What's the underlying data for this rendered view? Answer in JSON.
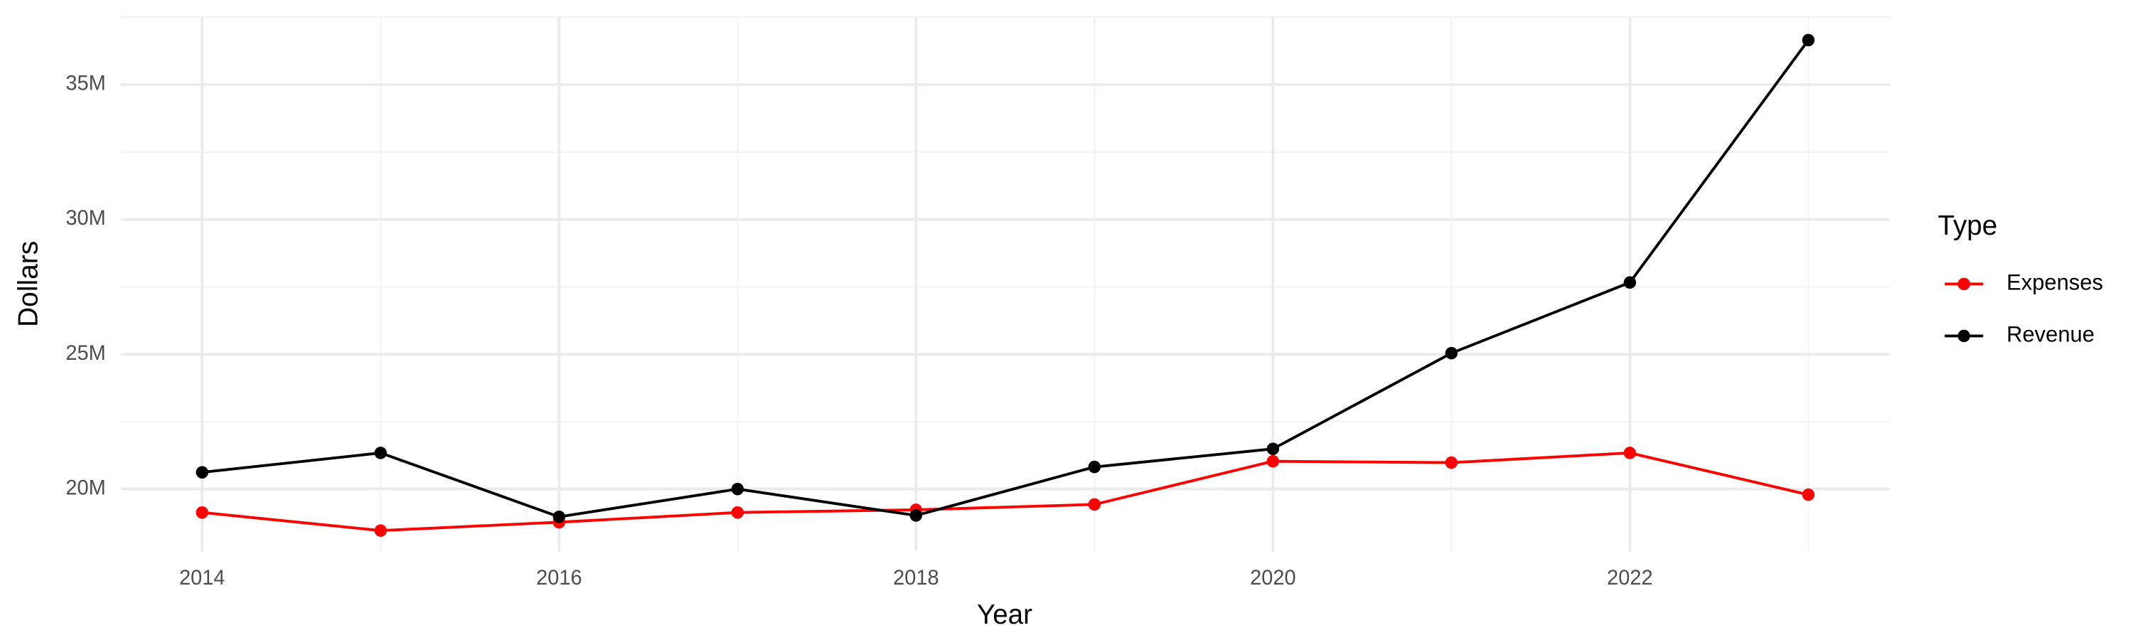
{
  "chart_data": {
    "type": "line",
    "x_label": "Year",
    "y_label": "Dollars",
    "legend_title": "Type",
    "x": [
      2014,
      2015,
      2016,
      2017,
      2018,
      2019,
      2020,
      2021,
      2022,
      2023
    ],
    "series": [
      {
        "name": "Expenses",
        "color": "#ff0000",
        "values": [
          19130000,
          18460000,
          18770000,
          19130000,
          19230000,
          19430000,
          21030000,
          20980000,
          21340000,
          19790000
        ]
      },
      {
        "name": "Revenue",
        "color": "#000000",
        "values": [
          20620000,
          21340000,
          18970000,
          20000000,
          19020000,
          20820000,
          21490000,
          25040000,
          27660000,
          36650000
        ]
      }
    ],
    "xlim": [
      2013.545,
      2023.456
    ],
    "ylim": [
      17690000,
      37520000
    ],
    "xticks": [
      2014,
      2016,
      2018,
      2020,
      2022
    ],
    "yticks": [
      {
        "value": 20000000,
        "label": "20M"
      },
      {
        "value": 25000000,
        "label": "25M"
      },
      {
        "value": 30000000,
        "label": "30M"
      },
      {
        "value": 35000000,
        "label": "35M"
      }
    ],
    "grid": true,
    "legend_position": "right"
  }
}
